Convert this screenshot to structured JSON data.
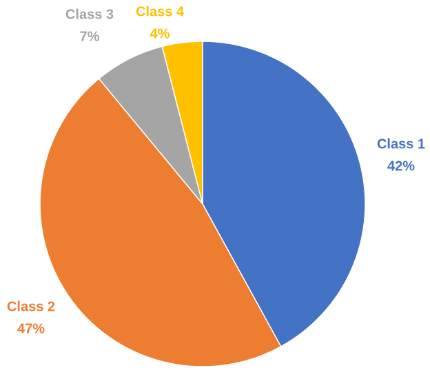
{
  "chart_data": {
    "type": "pie",
    "categories": [
      "Class 1",
      "Class 2",
      "Class 3",
      "Class 4"
    ],
    "values": [
      42,
      47,
      7,
      4
    ],
    "value_labels": [
      "42%",
      "47%",
      "7%",
      "4%"
    ],
    "colors": [
      "#4472c4",
      "#ed7d31",
      "#a5a5a5",
      "#ffc000"
    ]
  }
}
